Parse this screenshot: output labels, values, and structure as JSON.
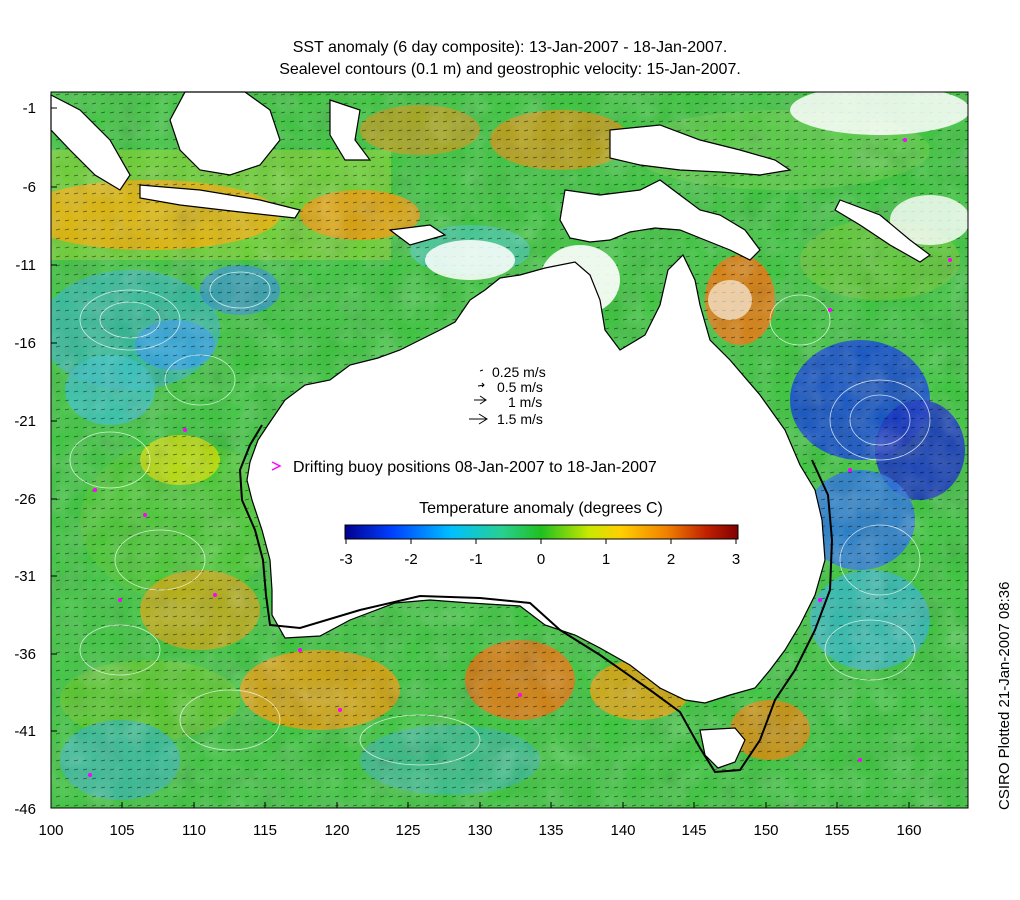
{
  "title_line1": "SST anomaly (6 day composite): 13-Jan-2007 - 18-Jan-2007.",
  "title_line2": "Sealevel contours (0.1 m) and geostrophic velocity: 15-Jan-2007.",
  "credit": "CSIRO Plotted 21-Jan-2007 08:36",
  "y_ticks": [
    "-1",
    "-6",
    "-11",
    "-16",
    "-21",
    "-26",
    "-31",
    "-36",
    "-41",
    "-46"
  ],
  "x_ticks": [
    "100",
    "105",
    "110",
    "115",
    "120",
    "125",
    "130",
    "135",
    "140",
    "145",
    "150",
    "155",
    "160"
  ],
  "velocity_legend": [
    "0.25 m/s",
    "0.5 m/s",
    "1 m/s",
    "1.5 m/s"
  ],
  "buoy_legend": "Drifting buoy positions 08-Jan-2007 to 18-Jan-2007",
  "colorbar": {
    "title": "Temperature anomaly (degrees C)",
    "ticks": [
      "-3",
      "-2",
      "-1",
      "0",
      "1",
      "2",
      "3"
    ],
    "colors": [
      "#00008f",
      "#0050ff",
      "#00c8ff",
      "#2fd08a",
      "#27c22a",
      "#9be000",
      "#f2e600",
      "#ffb000",
      "#f06000",
      "#b01010",
      "#7f0000"
    ]
  },
  "colors": {
    "land": "#ffffff",
    "buoy": "#ff00ff",
    "contour": "#ffffff"
  }
}
